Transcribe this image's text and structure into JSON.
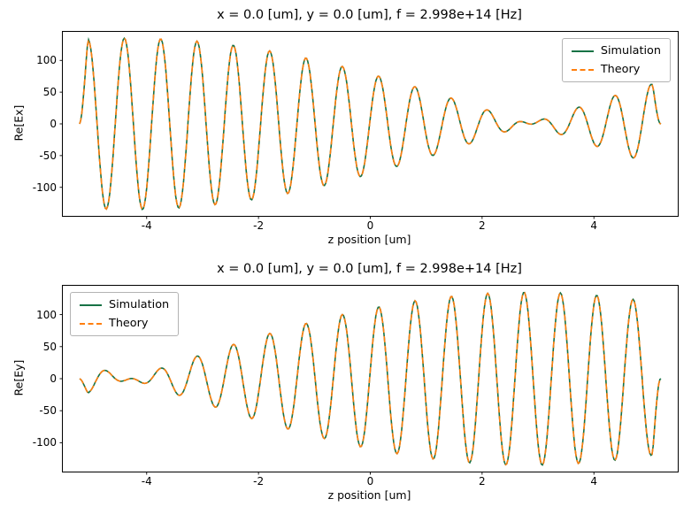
{
  "chart_data": [
    {
      "type": "line",
      "title": "x = 0.0 [um], y = 0.0 [um], f = 2.998e+14 [Hz]",
      "xlabel": "z position [um]",
      "ylabel": "Re[Ex]",
      "xlim": [
        -5.5,
        5.5
      ],
      "ylim": [
        -145,
        145
      ],
      "xticks": [
        -4,
        -2,
        0,
        2,
        4
      ],
      "yticks": [
        -100,
        -50,
        0,
        50,
        100
      ],
      "grid": false,
      "legend": {
        "position": "upper-right",
        "entries": [
          {
            "label": "Simulation",
            "color": "#177245",
            "dash": false
          },
          {
            "label": "Theory",
            "color": "#ff7f0e",
            "dash": true
          }
        ]
      },
      "waveform": {
        "description": "Ex of a polarization-rotating wave: amplitude*cos(rot_rate*(z-rot_zero))*cos(2*pi*z/wavelength+phase), tapered to 0 at domain edges; Simulation and Theory curves overlap",
        "amplitude": 135,
        "envelope_component": "cos",
        "rotation_rate_rad_per_um": 0.22,
        "rotation_zero_z_um": -4.3,
        "carrier_wavelength_um": 0.65,
        "carrier_phase_rad": 4.83,
        "z_min": -5.2,
        "z_max": 5.2,
        "sample_step_um": 0.02,
        "edge_taper_um": 0.15
      }
    },
    {
      "type": "line",
      "title": "x = 0.0 [um], y = 0.0 [um], f = 2.998e+14 [Hz]",
      "xlabel": "z position [um]",
      "ylabel": "Re[Ey]",
      "xlim": [
        -5.5,
        5.5
      ],
      "ylim": [
        -145,
        145
      ],
      "xticks": [
        -4,
        -2,
        0,
        2,
        4
      ],
      "yticks": [
        -100,
        -50,
        0,
        50,
        100
      ],
      "grid": false,
      "legend": {
        "position": "upper-left",
        "entries": [
          {
            "label": "Simulation",
            "color": "#177245",
            "dash": false
          },
          {
            "label": "Theory",
            "color": "#ff7f0e",
            "dash": true
          }
        ]
      },
      "waveform": {
        "description": "Ey of a polarization-rotating wave: amplitude*sin(rot_rate*(z-rot_zero))*cos(2*pi*z/wavelength+phase), tapered to 0 at domain edges; Simulation and Theory curves overlap",
        "amplitude": 135,
        "envelope_component": "sin",
        "rotation_rate_rad_per_um": 0.22,
        "rotation_zero_z_um": -4.3,
        "carrier_wavelength_um": 0.65,
        "carrier_phase_rad": 4.83,
        "z_min": -5.2,
        "z_max": 5.2,
        "sample_step_um": 0.02,
        "edge_taper_um": 0.15
      }
    }
  ]
}
